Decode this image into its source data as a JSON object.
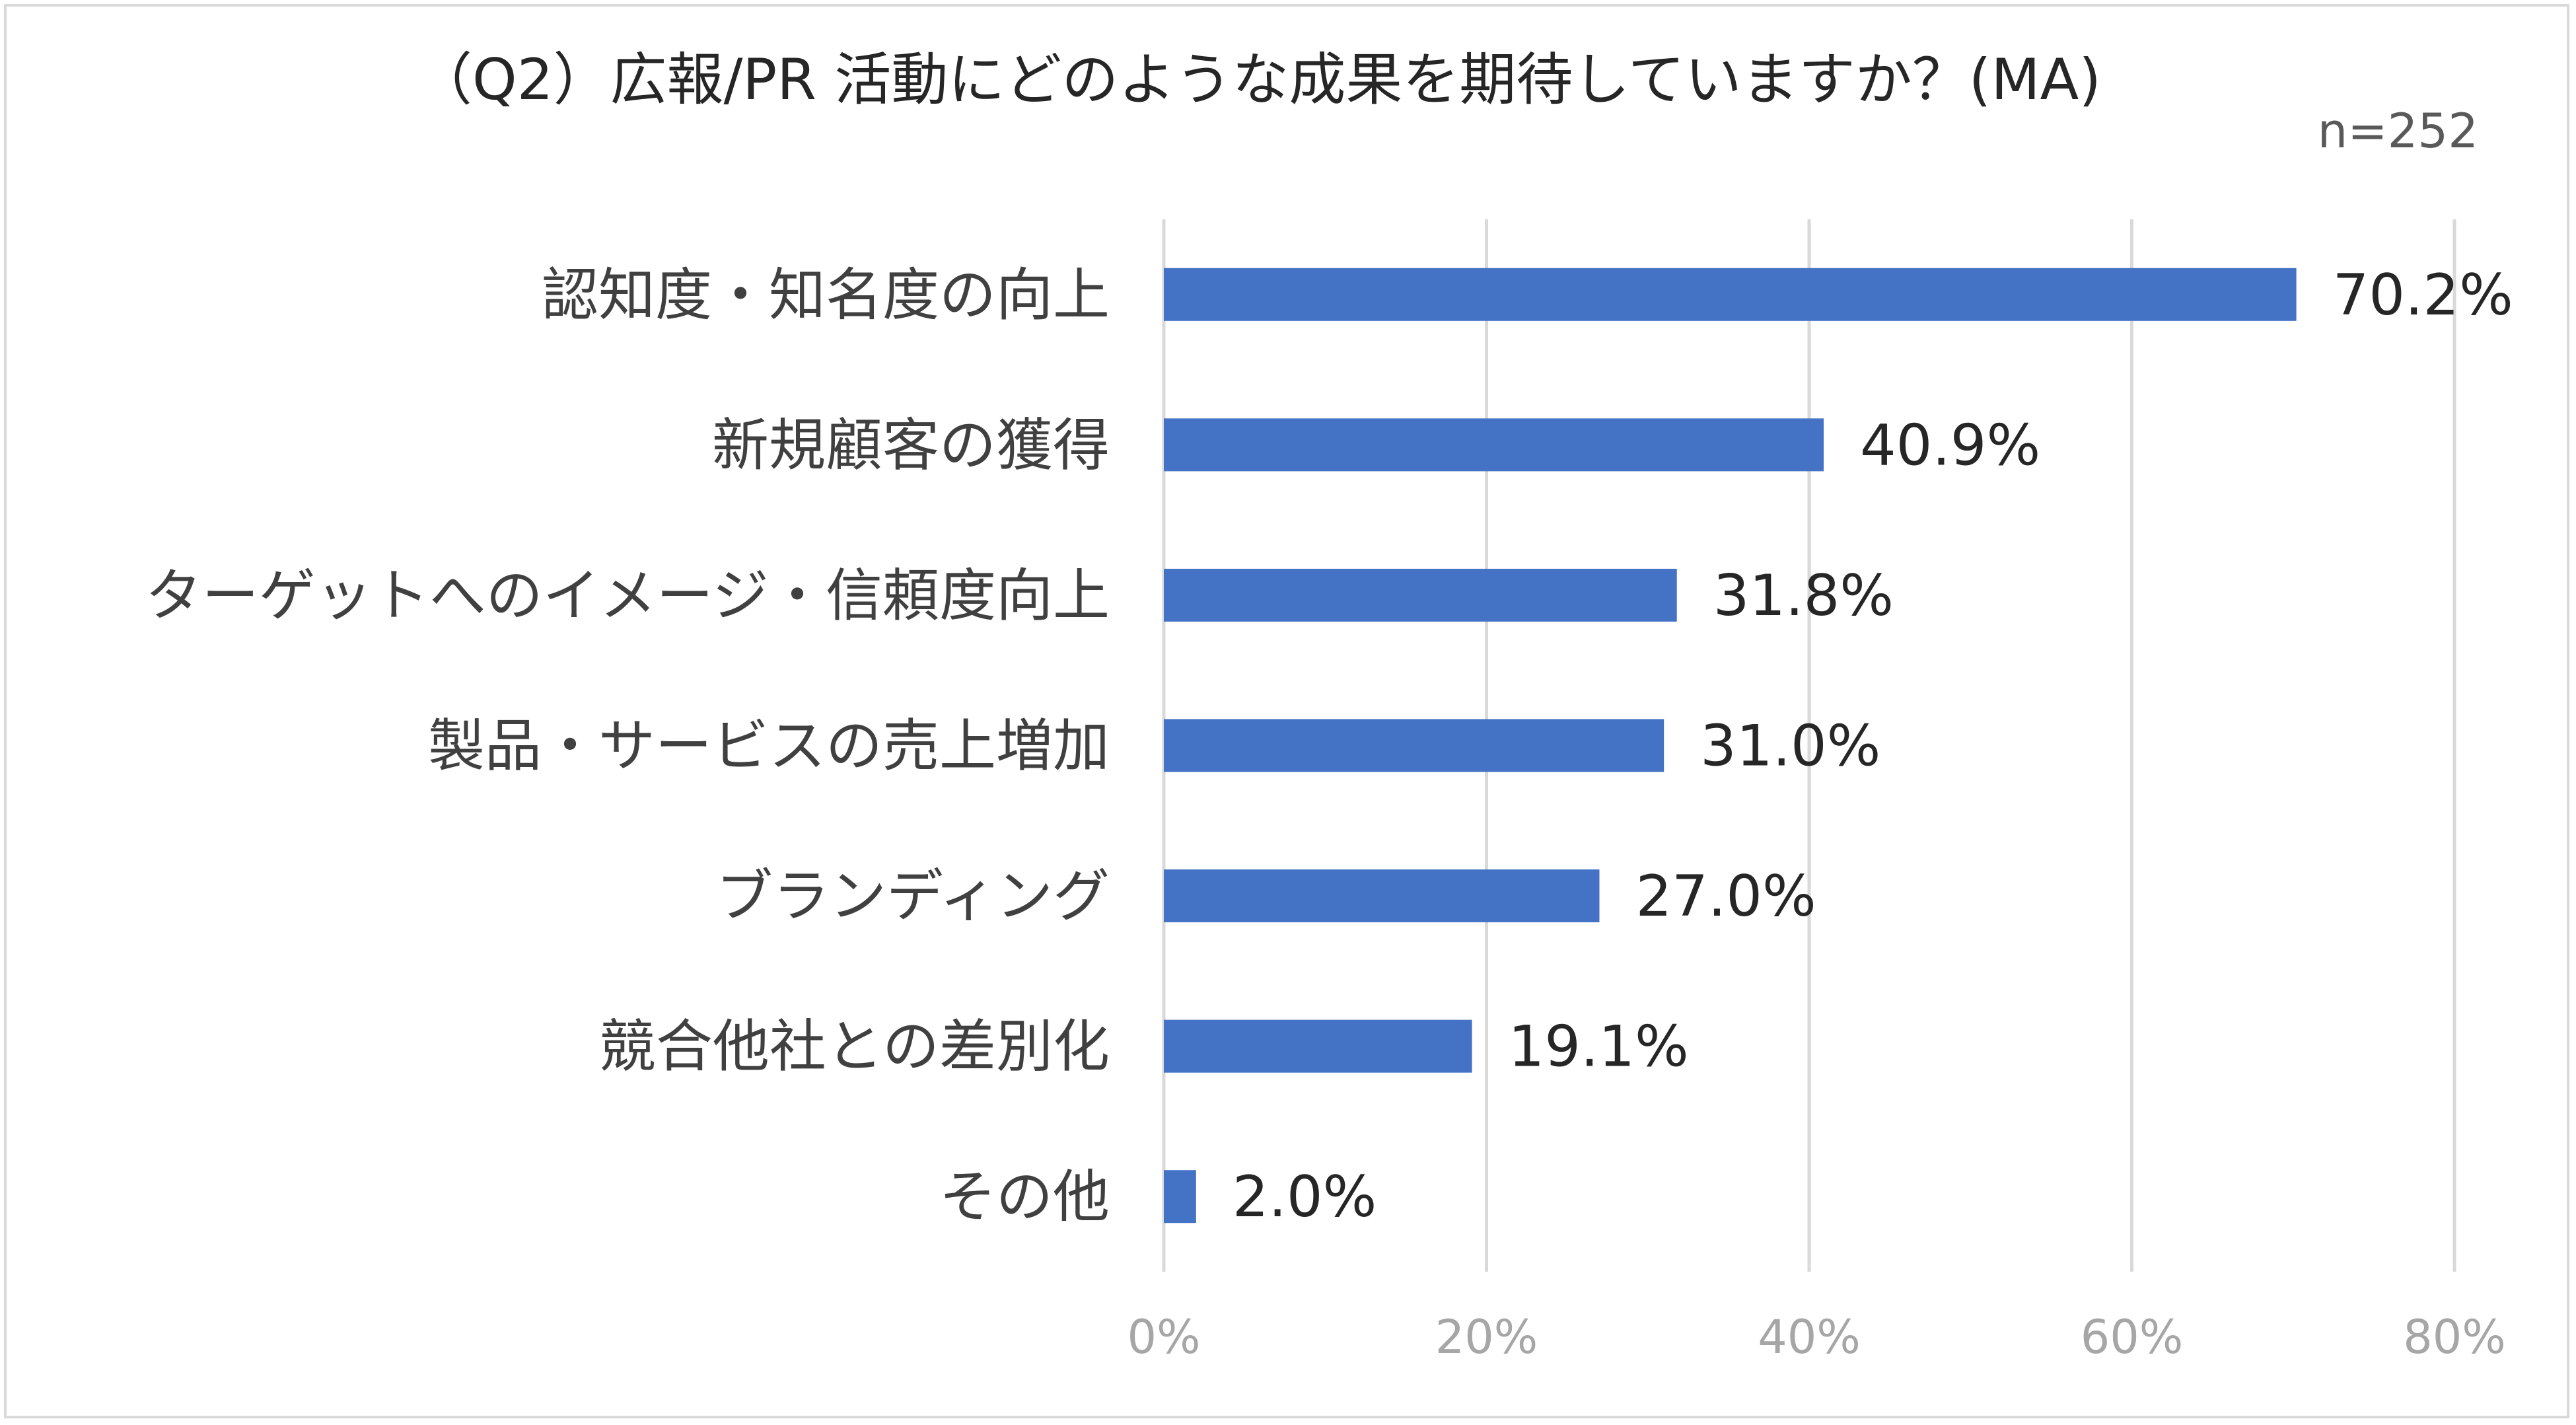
{
  "chart_data": {
    "type": "bar",
    "orientation": "horizontal",
    "title": "（Q2）広報/PR 活動にどのような成果を期待していますか？(MA)",
    "note": "n=252",
    "categories": [
      "認知度・知名度の向上",
      "新規顧客の獲得",
      "ターゲットへのイメージ・信頼度向上",
      "製品・サービスの売上増加",
      "ブランディング",
      "競合他社との差別化",
      "その他"
    ],
    "values": [
      70.2,
      40.9,
      31.8,
      31.0,
      27.0,
      19.1,
      2.0
    ],
    "value_labels": [
      "70.2%",
      "40.9%",
      "31.8%",
      "31.0%",
      "27.0%",
      "19.1%",
      "2.0%"
    ],
    "x_ticks": [
      "0%",
      "20%",
      "40%",
      "60%",
      "80%"
    ],
    "xlim": [
      0,
      80
    ],
    "xlabel": "",
    "ylabel": "",
    "grid": true,
    "legend": "none",
    "bar_color": "#4472C4",
    "gridline_color": "#D9D9D9",
    "tick_label_color": "#A6A6A6"
  }
}
